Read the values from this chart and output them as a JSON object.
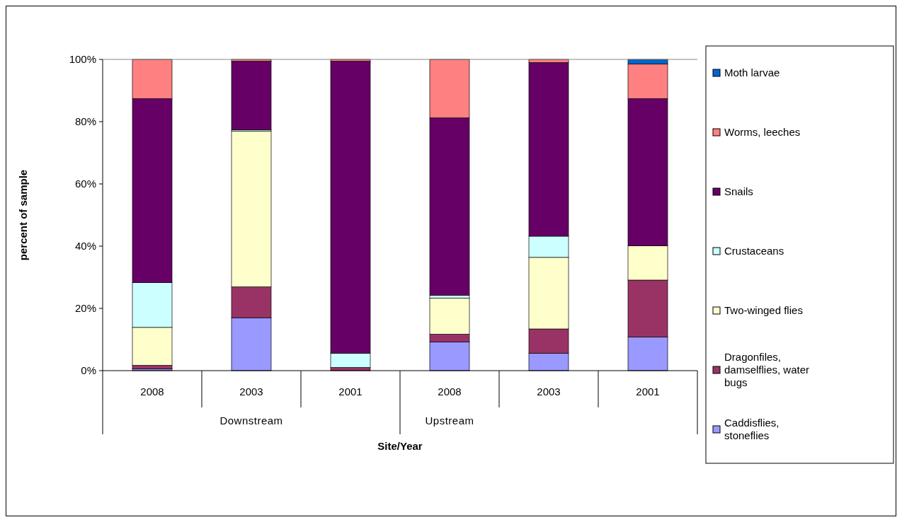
{
  "chart_data": {
    "type": "bar",
    "stacked": true,
    "xlabel": "Site/Year",
    "ylabel": "percent of sample",
    "categories": [
      "2008",
      "2003",
      "2001",
      "2008",
      "2003",
      "2001"
    ],
    "annotations": [
      "Downstream",
      "Upstream"
    ],
    "series": [
      {
        "name": "Caddisflies, stoneflies",
        "color": "#9999ff",
        "values": [
          0.6,
          17.0,
          0,
          9.2,
          5.6,
          10.8
        ]
      },
      {
        "name": "Dragonfiles, damselflies, water bugs",
        "color": "#993366",
        "values": [
          1.1,
          9.9,
          1.0,
          2.5,
          7.8,
          18.3
        ]
      },
      {
        "name": "Two-winged flies",
        "color": "#ffffcc",
        "values": [
          12.2,
          50.1,
          0,
          11.6,
          23.0,
          11.0
        ]
      },
      {
        "name": "Crustaceans",
        "color": "#ccffff",
        "values": [
          14.4,
          0.4,
          4.6,
          0.9,
          6.8,
          0
        ]
      },
      {
        "name": "Snails",
        "color": "#660066",
        "values": [
          59.1,
          22.0,
          93.8,
          57.0,
          55.8,
          47.3
        ]
      },
      {
        "name": "Worms, leeches",
        "color": "#ff8080",
        "values": [
          12.6,
          0.6,
          0.6,
          18.8,
          1.0,
          11.1
        ]
      },
      {
        "name": "Moth larvae",
        "color": "#0066cc",
        "values": [
          0,
          0,
          0,
          0,
          0,
          1.5
        ]
      }
    ],
    "ylim": [
      0,
      100
    ],
    "yticks": [
      {
        "value": 0,
        "label": "0%"
      },
      {
        "value": 20,
        "label": "20%"
      },
      {
        "value": 40,
        "label": "40%"
      },
      {
        "value": 60,
        "label": "60%"
      },
      {
        "value": 80,
        "label": "80%"
      },
      {
        "value": 100,
        "label": "100%"
      }
    ],
    "legend": "right"
  }
}
